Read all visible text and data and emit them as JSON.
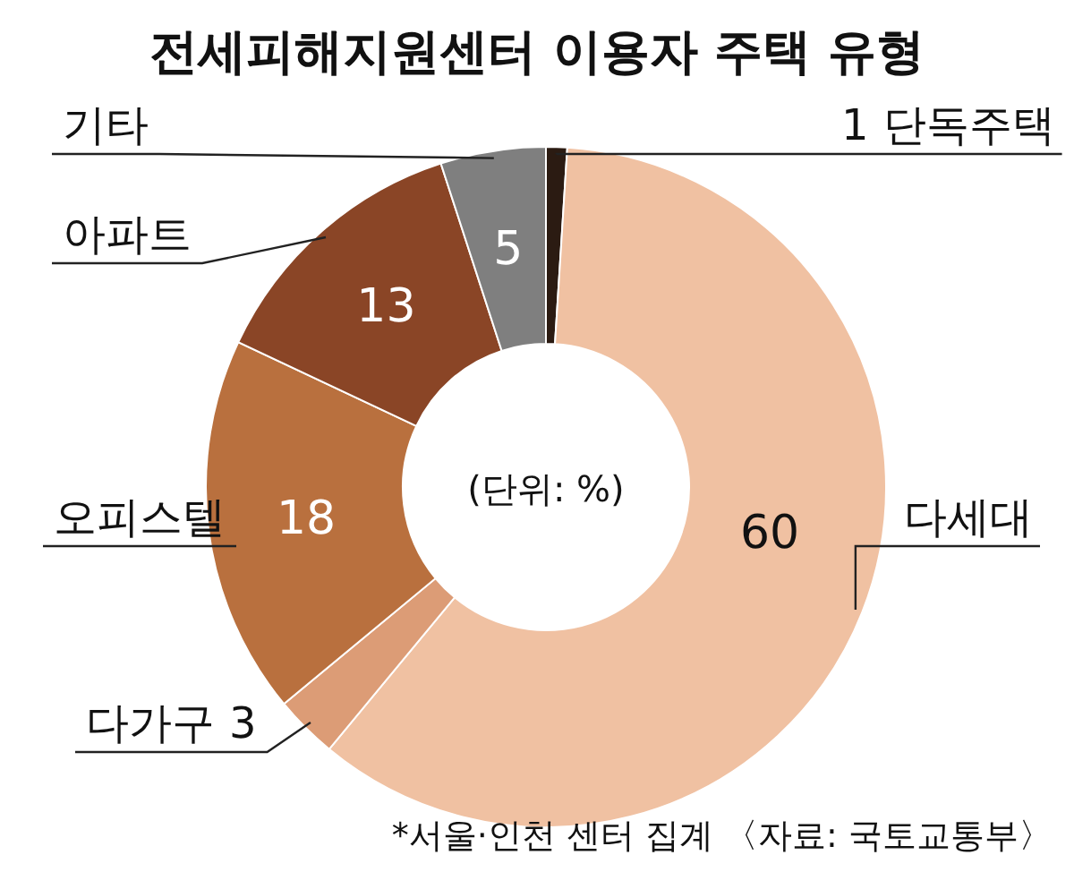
{
  "chart_data": {
    "type": "donut",
    "title": "전세피해지원센터 이용자 주택 유형",
    "categories": [
      "단독주택",
      "다세대",
      "다가구",
      "오피스텔",
      "아파트",
      "기타"
    ],
    "values": [
      1,
      60,
      3,
      18,
      13,
      5
    ],
    "colors": [
      "#2b1b12",
      "#f0c1a2",
      "#dc9c76",
      "#b9703e",
      "#8a4526",
      "#7f7f7f"
    ],
    "data_labels": true,
    "annotations": [
      "(단위: %)",
      "*서울·인천 센터 집계 〈자료: 국토교통부〉"
    ]
  }
}
